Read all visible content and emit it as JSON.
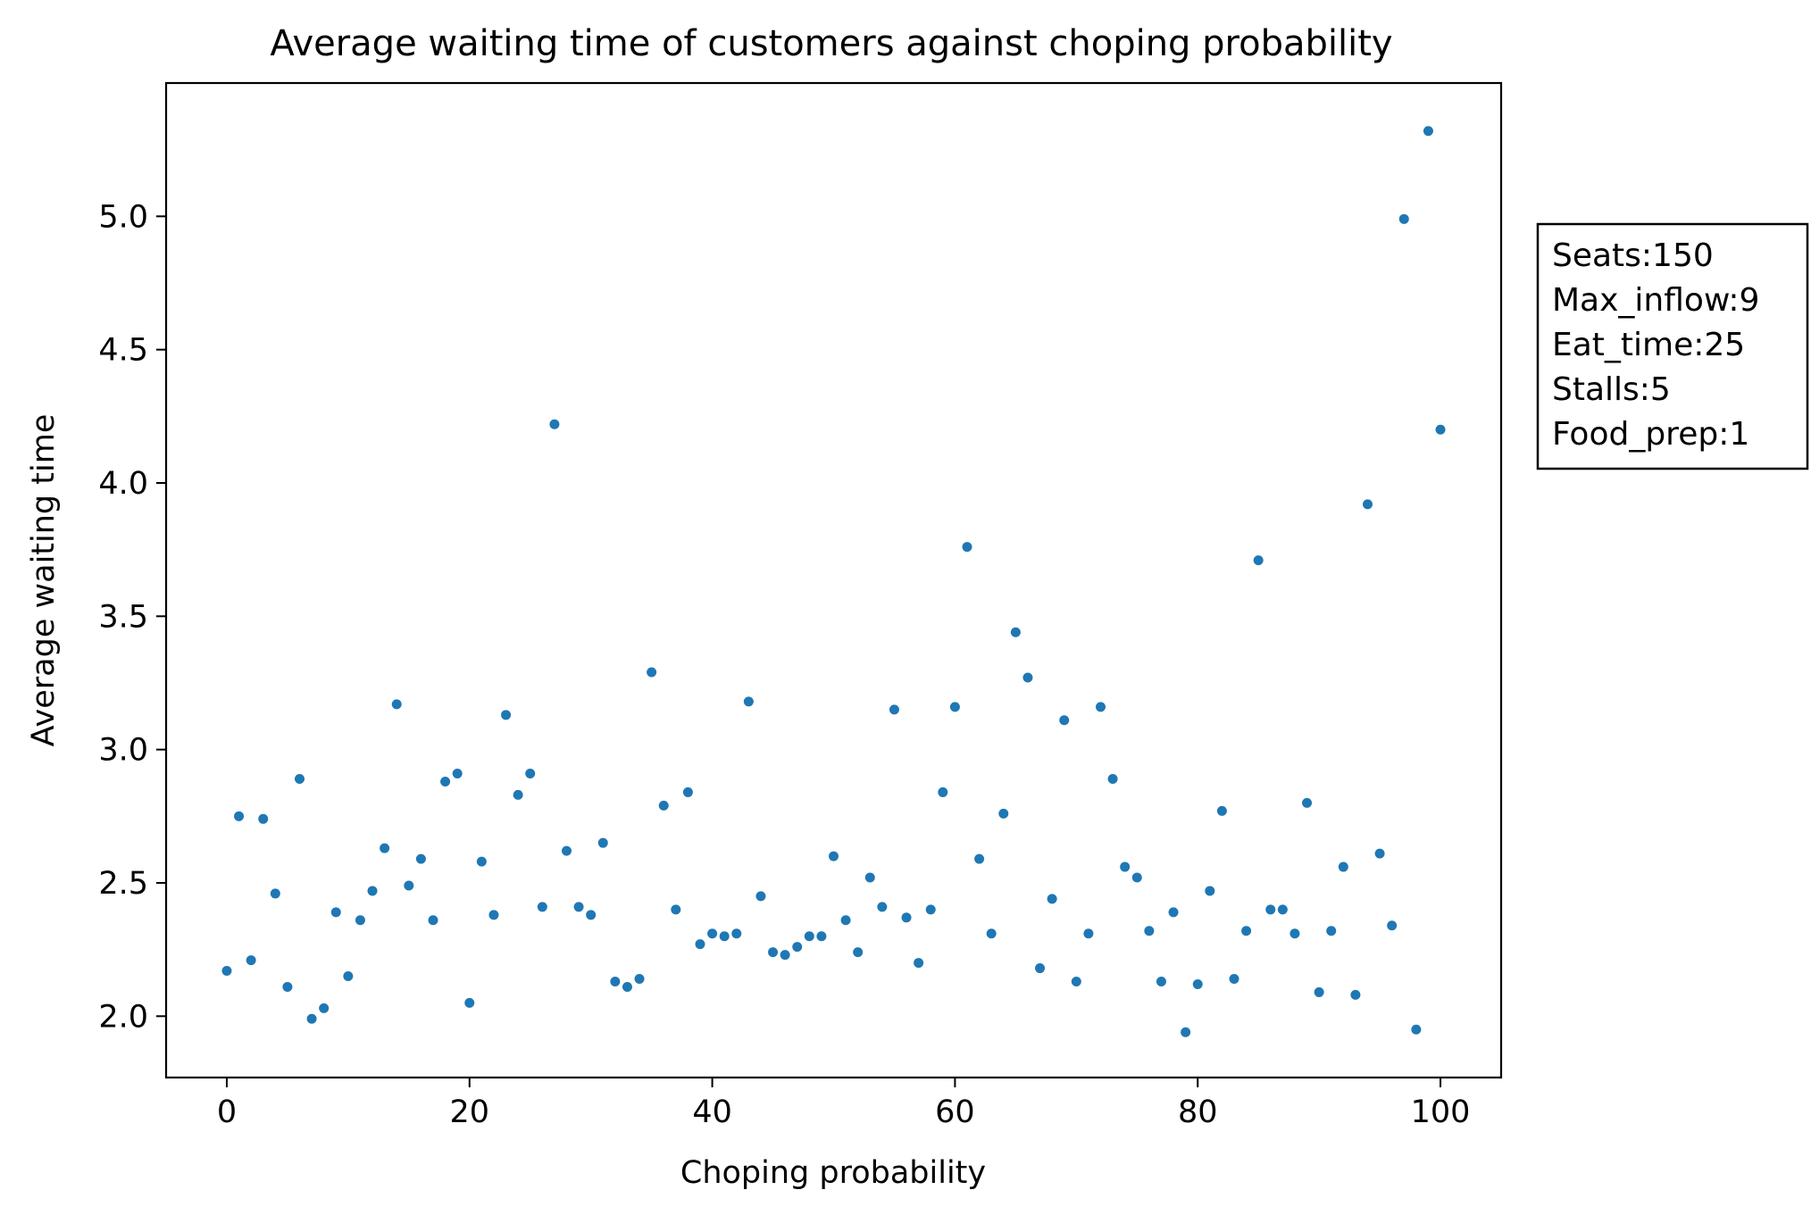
{
  "chart_data": {
    "type": "scatter",
    "title": "Average waiting time of customers against choping probability",
    "xlabel": "Choping probability",
    "ylabel": "Average waiting time",
    "xlim": [
      -5,
      105
    ],
    "ylim": [
      1.77,
      5.5
    ],
    "xticks": [
      0,
      20,
      40,
      60,
      80,
      100
    ],
    "xtick_labels": [
      "0",
      "20",
      "40",
      "60",
      "80",
      "100"
    ],
    "yticks": [
      2.0,
      2.5,
      3.0,
      3.5,
      4.0,
      4.5,
      5.0
    ],
    "ytick_labels": [
      "2.0",
      "2.5",
      "3.0",
      "3.5",
      "4.0",
      "4.5",
      "5.0"
    ],
    "grid": false,
    "marker_color": "#1f77b4",
    "annotation_lines": [
      "Seats:150",
      "Max_inflow:9",
      "Eat_time:25",
      "Stalls:5",
      "Food_prep:1"
    ],
    "annotation_position": "right, outside plot area",
    "series": [
      {
        "x": [
          0,
          1,
          2,
          3,
          4,
          5,
          6,
          7,
          8,
          9,
          10,
          11,
          12,
          13,
          14,
          15,
          16,
          17,
          18,
          19,
          20,
          21,
          22,
          23,
          24,
          25,
          26,
          27,
          28,
          29,
          30,
          31,
          32,
          33,
          34,
          35,
          36,
          37,
          38,
          39,
          40,
          41,
          42,
          43,
          44,
          45,
          46,
          47,
          48,
          49,
          50,
          51,
          52,
          53,
          54,
          55,
          56,
          57,
          58,
          59,
          60,
          61,
          62,
          63,
          64,
          65,
          66,
          67,
          68,
          69,
          70,
          71,
          72,
          73,
          74,
          75,
          76,
          77,
          78,
          79,
          80,
          81,
          82,
          83,
          84,
          85,
          86,
          87,
          88,
          89,
          90,
          91,
          92,
          93,
          94,
          95,
          96,
          97,
          98,
          99,
          100
        ],
        "y": [
          2.17,
          2.75,
          2.21,
          2.74,
          2.46,
          2.11,
          2.89,
          1.99,
          2.03,
          2.39,
          2.15,
          2.36,
          2.47,
          2.63,
          3.17,
          2.49,
          2.59,
          2.36,
          2.88,
          2.91,
          2.05,
          2.58,
          2.38,
          3.13,
          2.83,
          2.91,
          2.41,
          4.22,
          2.62,
          2.41,
          2.38,
          2.65,
          2.13,
          2.11,
          2.14,
          3.29,
          2.79,
          2.4,
          2.84,
          2.27,
          2.31,
          2.3,
          2.31,
          3.18,
          2.45,
          2.24,
          2.23,
          2.26,
          2.3,
          2.3,
          2.6,
          2.36,
          2.24,
          2.52,
          2.41,
          3.15,
          2.37,
          2.2,
          2.4,
          2.84,
          3.16,
          3.76,
          2.59,
          2.31,
          2.76,
          3.44,
          3.27,
          2.18,
          2.44,
          3.11,
          2.13,
          2.31,
          3.16,
          2.89,
          2.56,
          2.52,
          2.32,
          2.13,
          2.39,
          1.94,
          2.12,
          2.47,
          2.77,
          2.14,
          2.32,
          3.71,
          2.4,
          2.4,
          2.31,
          2.8,
          2.09,
          2.32,
          2.56,
          2.08,
          3.92,
          2.61,
          2.34,
          4.99,
          1.95,
          5.32,
          4.2
        ]
      }
    ]
  }
}
